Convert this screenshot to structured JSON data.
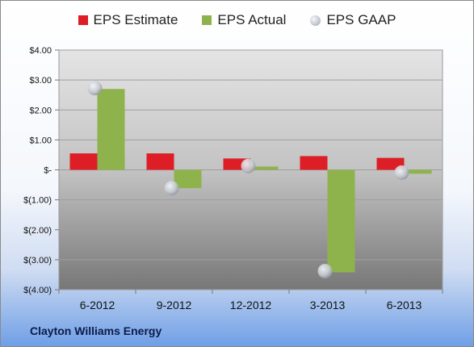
{
  "chart_data": {
    "type": "bar",
    "categories": [
      "6-2012",
      "9-2012",
      "12-2012",
      "3-2013",
      "6-2013"
    ],
    "series": [
      {
        "name": "EPS Estimate",
        "kind": "bar",
        "color": "#dd1e26",
        "values": [
          0.55,
          0.55,
          0.38,
          0.46,
          0.4
        ]
      },
      {
        "name": "EPS Actual",
        "kind": "bar",
        "color": "#8eb34d",
        "values": [
          2.7,
          -0.61,
          0.11,
          -3.42,
          -0.13
        ]
      },
      {
        "name": "EPS GAAP",
        "kind": "marker",
        "color": "#c3c8cf",
        "values": [
          2.73,
          -0.61,
          0.13,
          -3.38,
          -0.09
        ]
      }
    ],
    "ylim": [
      -4,
      4
    ],
    "yticks": [
      {
        "value": 4,
        "label": "$4.00"
      },
      {
        "value": 3,
        "label": "$3.00"
      },
      {
        "value": 2,
        "label": "$2.00"
      },
      {
        "value": 1,
        "label": "$1.00"
      },
      {
        "value": 0,
        "label": "$-"
      },
      {
        "value": -1,
        "label": "$(1.00)"
      },
      {
        "value": -2,
        "label": "$(2.00)"
      },
      {
        "value": -3,
        "label": "$(3.00)"
      },
      {
        "value": -4,
        "label": "$(4.00)"
      }
    ],
    "grid": true,
    "legend": "top-center"
  },
  "footer": {
    "company": "Clayton Williams Energy"
  }
}
